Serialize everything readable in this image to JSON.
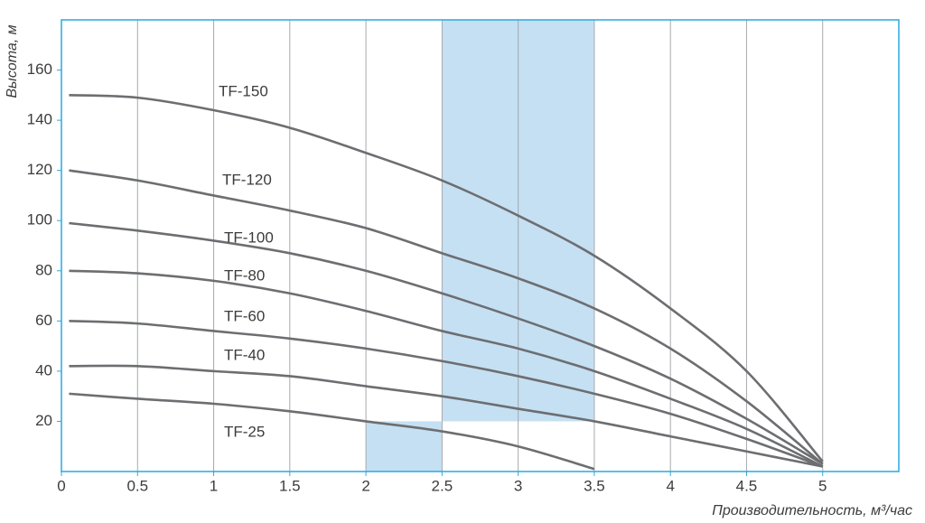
{
  "chart_data": {
    "type": "line",
    "xlabel": "Производительность, м³/час",
    "ylabel": "Высота, м",
    "x": [
      0.05,
      0.5,
      1,
      1.5,
      2,
      2.5,
      3,
      3.5,
      4,
      4.5,
      5
    ],
    "series": [
      {
        "name": "TF-150",
        "color": "#6d6e71",
        "values": [
          150,
          149,
          144,
          137,
          127,
          116,
          102,
          86,
          65,
          40,
          4
        ]
      },
      {
        "name": "TF-120",
        "color": "#6d6e71",
        "values": [
          120,
          116,
          110,
          104,
          97,
          87,
          77,
          65,
          49,
          28,
          3
        ]
      },
      {
        "name": "TF-100",
        "color": "#6d6e71",
        "values": [
          99,
          96,
          92,
          87,
          80,
          71,
          61,
          50,
          37,
          21,
          3
        ]
      },
      {
        "name": "TF-80",
        "color": "#6d6e71",
        "values": [
          80,
          79,
          76,
          71,
          64,
          56,
          49,
          40,
          29,
          17,
          2
        ]
      },
      {
        "name": "TF-60",
        "color": "#6d6e71",
        "values": [
          60,
          59,
          56,
          53,
          49,
          44,
          38,
          31,
          23,
          13,
          2
        ]
      },
      {
        "name": "TF-40",
        "color": "#6d6e71",
        "values": [
          42,
          42,
          40,
          38,
          34,
          30,
          25,
          20,
          14,
          8,
          2
        ]
      },
      {
        "name": "TF-25",
        "color": "#6d6e71",
        "values": [
          31,
          29,
          27,
          24,
          20,
          16,
          10,
          1,
          null,
          null,
          null
        ]
      }
    ],
    "highlights": [
      {
        "xlim": [
          2.5,
          3.5
        ],
        "ylim": [
          20,
          180
        ],
        "color": "#c5e0f3"
      },
      {
        "xlim": [
          2,
          2.5
        ],
        "ylim": [
          0,
          20
        ],
        "color": "#c5e0f3"
      }
    ],
    "xlim": [
      0,
      5.5
    ],
    "ylim": [
      0,
      180
    ],
    "xticks": [
      0,
      0.5,
      1,
      1.5,
      2,
      2.5,
      3,
      3.5,
      4,
      4.5,
      5
    ],
    "yticks": [
      20,
      40,
      60,
      80,
      100,
      120,
      140,
      160
    ],
    "grid": "x",
    "frame_color": "#29a8e0",
    "grid_color": "#a7a9ac"
  }
}
